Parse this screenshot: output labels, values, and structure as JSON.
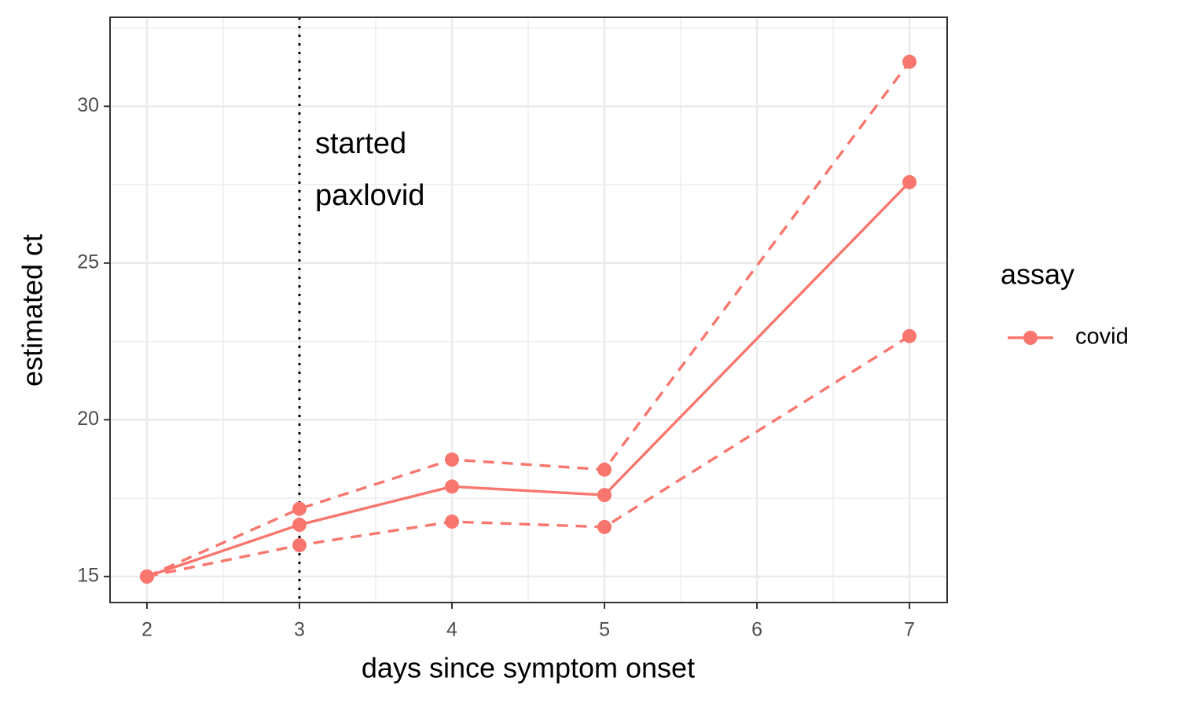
{
  "chart_data": {
    "type": "line",
    "x_label": "days since symptom onset",
    "y_label": "estimated ct",
    "x": [
      2,
      3,
      4,
      5,
      7
    ],
    "series": [
      {
        "name": "covid",
        "color": "#F8766D",
        "values": [
          15,
          16.65,
          17.87,
          17.6,
          27.58
        ],
        "upper": [
          15,
          17.16,
          18.73,
          18.41,
          31.42
        ],
        "lower": [
          15,
          16.0,
          16.75,
          16.58,
          22.67
        ]
      }
    ],
    "xlim": [
      1.758,
      7.247
    ],
    "xticks": [
      2,
      3,
      4,
      5,
      6,
      7
    ],
    "ylim": [
      14.17,
      32.84
    ],
    "yticks": [
      15,
      20,
      25,
      30
    ],
    "grid": true,
    "vline": {
      "x": 3,
      "label": [
        "started",
        "paxlovid"
      ]
    },
    "legend": {
      "title": "assay",
      "position": "right"
    }
  }
}
